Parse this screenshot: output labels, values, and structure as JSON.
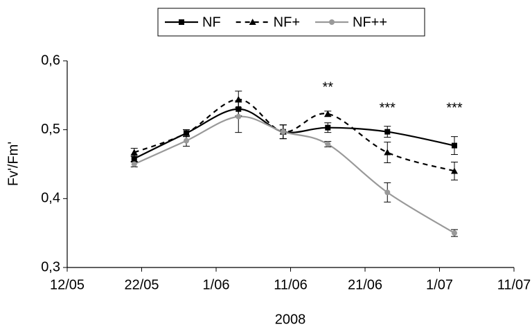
{
  "chart_data": {
    "type": "line",
    "y_label": "Fv'/Fm'",
    "x_label": "2008",
    "x": [
      142,
      149,
      156,
      162,
      168,
      176,
      185
    ],
    "xlim": [
      133,
      193
    ],
    "xticks": [
      {
        "value": 133,
        "label": "12/05"
      },
      {
        "value": 143,
        "label": "22/05"
      },
      {
        "value": 153,
        "label": "1/06"
      },
      {
        "value": 163,
        "label": "11/06"
      },
      {
        "value": 173,
        "label": "21/06"
      },
      {
        "value": 183,
        "label": "1/07"
      },
      {
        "value": 193,
        "label": "11/07"
      }
    ],
    "ylim": [
      0.3,
      0.6
    ],
    "yticks": [
      {
        "value": 0.3,
        "label": "0,3"
      },
      {
        "value": 0.4,
        "label": "0,4"
      },
      {
        "value": 0.5,
        "label": "0,5"
      },
      {
        "value": 0.6,
        "label": "0,6"
      }
    ],
    "grid": false,
    "series": [
      {
        "name": "NF",
        "color": "#000000",
        "dash": "solid",
        "marker": "square",
        "values": [
          0.458,
          0.495,
          0.53,
          0.497,
          0.503,
          0.497,
          0.477
        ],
        "errors": [
          0.005,
          0.005,
          0.01,
          0.01,
          0.007,
          0.008,
          0.013
        ]
      },
      {
        "name": "NF+",
        "color": "#000000",
        "dash": "dashed",
        "marker": "triangle",
        "values": [
          0.467,
          0.495,
          0.544,
          0.497,
          0.523,
          0.467,
          0.44
        ],
        "errors": [
          0.006,
          0.005,
          0.012,
          0.01,
          0.004,
          0.015,
          0.013
        ]
      },
      {
        "name": "NF++",
        "color": "#999999",
        "dash": "solid",
        "marker": "circle",
        "values": [
          0.45,
          0.484,
          0.519,
          0.497,
          0.479,
          0.409,
          0.35
        ],
        "errors": [
          0.004,
          0.008,
          0.023,
          0.01,
          0.004,
          0.014,
          0.005
        ]
      }
    ],
    "annotations": [
      {
        "text": "**",
        "x": 168
      },
      {
        "text": "***",
        "x": 176
      },
      {
        "text": "***",
        "x": 185
      }
    ],
    "legend": "top"
  }
}
